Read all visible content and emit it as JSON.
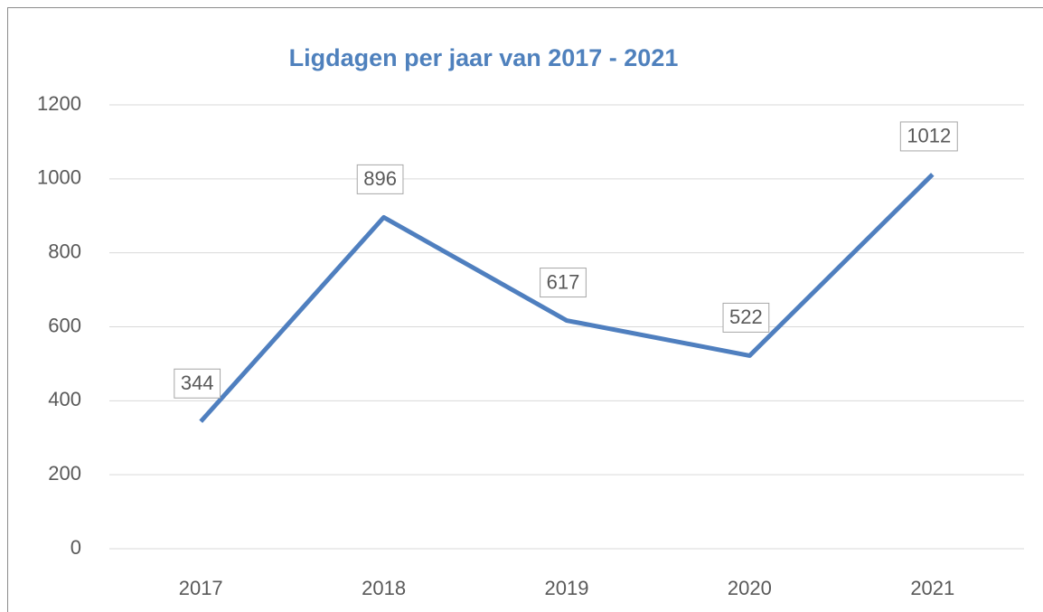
{
  "chart_data": {
    "type": "line",
    "title": "Ligdagen per jaar van 2017 - 2021",
    "categories": [
      "2017",
      "2018",
      "2019",
      "2020",
      "2021"
    ],
    "series": [
      {
        "name": "Ligdagen",
        "color": "#4f7fbf",
        "values": [
          344,
          896,
          617,
          522,
          1012
        ]
      }
    ],
    "ylim": [
      0,
      1200
    ],
    "yticks": [
      0,
      200,
      400,
      600,
      800,
      1000,
      1200
    ],
    "grid": true
  }
}
